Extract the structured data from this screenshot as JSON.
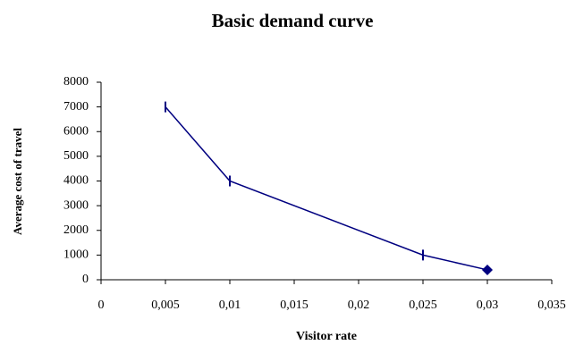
{
  "chart_data": {
    "type": "line",
    "title": "Basic demand curve",
    "x_label": "Visitor rate",
    "y_label": "Average cost of travel",
    "x": [
      0.005,
      0.01,
      0.025,
      0.03
    ],
    "series": [
      {
        "name": "Average cost of travel",
        "color": "#000080",
        "values": [
          7000,
          4000,
          1000,
          400
        ],
        "markers": [
          "bar",
          "bar",
          "bar",
          "diamond"
        ]
      }
    ],
    "xlim": [
      0,
      0.035
    ],
    "xticks": [
      0,
      {
        "value": 0.005,
        "label": "0,005"
      },
      {
        "value": 0.01,
        "label": "0,01"
      },
      {
        "value": 0.015,
        "label": "0,015"
      },
      {
        "value": 0.02,
        "label": "0,02"
      },
      {
        "value": 0.025,
        "label": "0,025"
      },
      {
        "value": 0.03,
        "label": "0,03"
      },
      {
        "value": 0.035,
        "label": "0,035"
      }
    ],
    "ylim": [
      0,
      8000
    ],
    "yticks": [
      0,
      1000,
      2000,
      3000,
      4000,
      5000,
      6000,
      7000,
      8000
    ],
    "grid": false
  }
}
